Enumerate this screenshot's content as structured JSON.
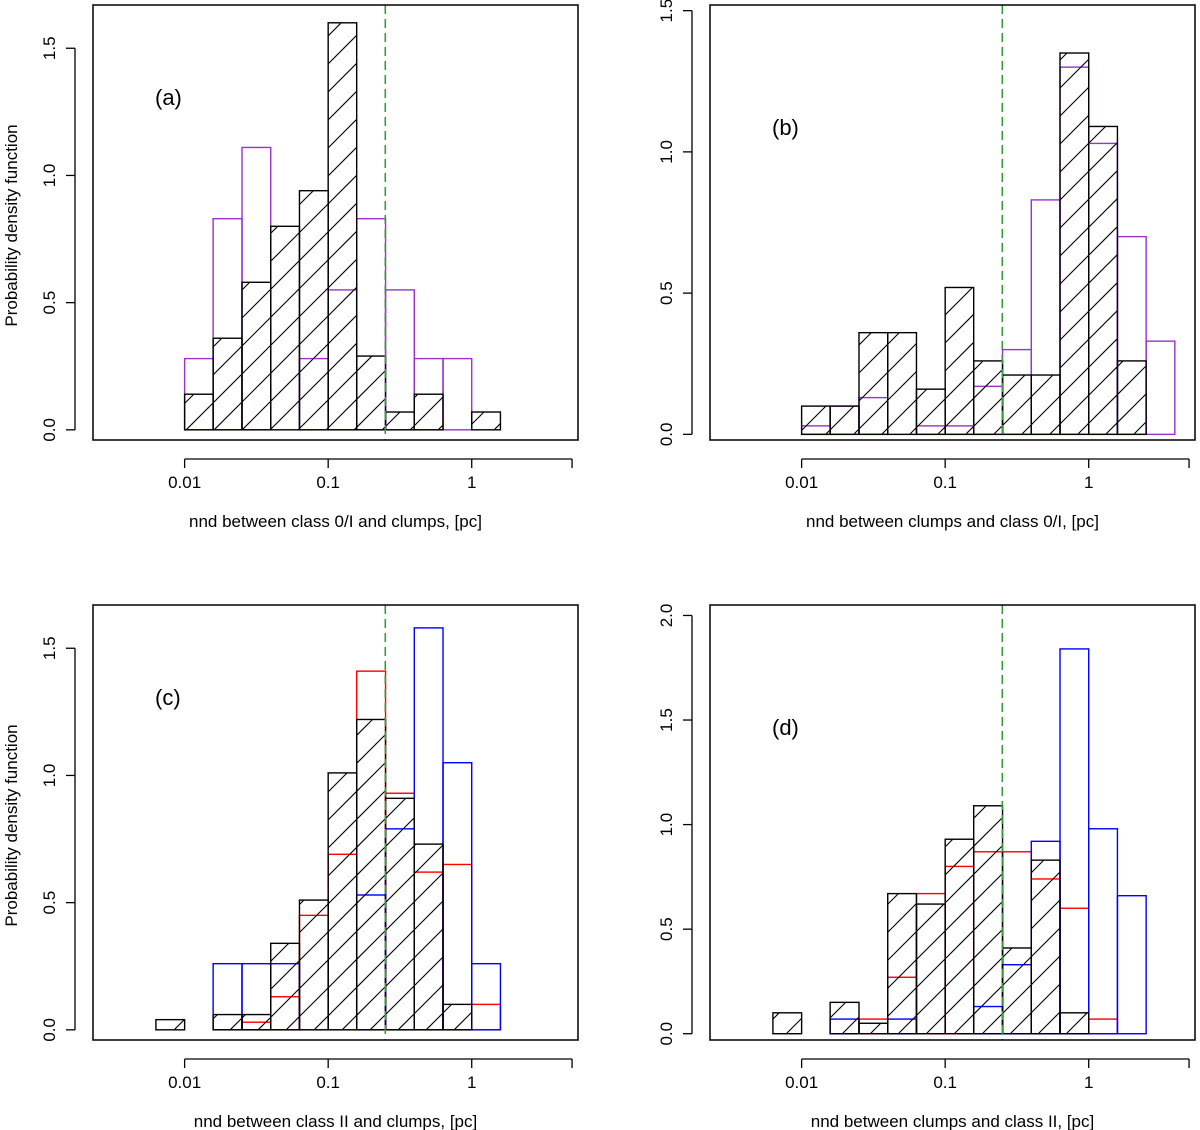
{
  "colors": {
    "black": "#000000",
    "purple": "#9a32cd",
    "red": "#ff0000",
    "blue": "#0000ff",
    "green": "#3a9a3a"
  },
  "chart_data": [
    {
      "type": "bar",
      "panel": "(a)",
      "xlabel": "nnd between class 0/I and clumps, [pc]",
      "ylabel": "Probability density function",
      "xscale": "log10",
      "xlim": [
        0.0023,
        5.5
      ],
      "ylim": [
        -0.04,
        1.67
      ],
      "xticks": [
        0.01,
        0.1,
        1,
        5
      ],
      "xtick_labels": [
        "0.01",
        "0.1",
        "1",
        ""
      ],
      "yticks": [
        0,
        0.5,
        1.0,
        1.5
      ],
      "ytick_labels": [
        "0.0",
        "0.5",
        "1.0",
        "1.5"
      ],
      "vline": 0.25,
      "bin_edges": [
        0.01,
        0.0158,
        0.0251,
        0.0398,
        0.0631,
        0.1,
        0.158,
        0.251,
        0.398,
        0.631,
        1.0,
        1.585
      ],
      "series": [
        {
          "name": "purple",
          "color": "purple",
          "hatched": false,
          "values": [
            0.28,
            0.83,
            1.11,
            0.0,
            0.28,
            0.55,
            0.83,
            0.55,
            0.28,
            0.28,
            0.0
          ]
        },
        {
          "name": "black",
          "color": "black",
          "hatched": true,
          "values": [
            0.14,
            0.36,
            0.58,
            0.8,
            0.94,
            1.6,
            0.29,
            0.07,
            0.14,
            0.0,
            0.07
          ]
        }
      ]
    },
    {
      "type": "bar",
      "panel": "(b)",
      "xlabel": "nnd between clumps and class 0/I, [pc]",
      "ylabel": "",
      "xscale": "log10",
      "xlim": [
        0.0023,
        5.5
      ],
      "ylim": [
        -0.02,
        1.52
      ],
      "xticks": [
        0.01,
        0.1,
        1,
        5
      ],
      "xtick_labels": [
        "0.01",
        "0.1",
        "1",
        ""
      ],
      "yticks": [
        0,
        0.5,
        1.0,
        1.5
      ],
      "ytick_labels": [
        "0.0",
        "0.5",
        "1.0",
        "1.5"
      ],
      "vline": 0.25,
      "bin_edges": [
        0.01,
        0.0158,
        0.0251,
        0.0398,
        0.0631,
        0.1,
        0.158,
        0.251,
        0.398,
        0.631,
        1.0,
        1.585,
        2.512,
        3.981
      ],
      "series": [
        {
          "name": "purple",
          "color": "purple",
          "hatched": false,
          "values": [
            0.03,
            0.1,
            0.13,
            0.0,
            0.03,
            0.03,
            0.17,
            0.3,
            0.83,
            1.3,
            1.03,
            0.7,
            0.33
          ]
        },
        {
          "name": "black",
          "color": "black",
          "hatched": true,
          "values": [
            0.1,
            0.1,
            0.36,
            0.36,
            0.16,
            0.52,
            0.26,
            0.21,
            0.21,
            1.35,
            1.09,
            0.26,
            0.0
          ]
        }
      ]
    },
    {
      "type": "bar",
      "panel": "(c)",
      "xlabel": "nnd between class II and clumps, [pc]",
      "ylabel": "Probability density function",
      "xscale": "log10",
      "xlim": [
        0.0023,
        5.5
      ],
      "ylim": [
        -0.04,
        1.67
      ],
      "xticks": [
        0.01,
        0.1,
        1,
        5
      ],
      "xtick_labels": [
        "0.01",
        "0.1",
        "1",
        ""
      ],
      "yticks": [
        0,
        0.5,
        1.0,
        1.5
      ],
      "ytick_labels": [
        "0.0",
        "0.5",
        "1.0",
        "1.5"
      ],
      "vline": 0.25,
      "bin_edges": [
        0.00631,
        0.01,
        0.0158,
        0.0251,
        0.0398,
        0.0631,
        0.1,
        0.158,
        0.251,
        0.398,
        0.631,
        1.0,
        1.585,
        2.512,
        3.981
      ],
      "series": [
        {
          "name": "red",
          "color": "red",
          "hatched": false,
          "values": [
            0.0,
            0.0,
            0.0,
            0.03,
            0.13,
            0.45,
            0.69,
            1.41,
            0.93,
            0.62,
            0.65,
            0.1,
            0.0,
            0.0
          ]
        },
        {
          "name": "blue",
          "color": "blue",
          "hatched": false,
          "values": [
            0.0,
            0.0,
            0.26,
            0.26,
            0.26,
            0.0,
            0.0,
            0.53,
            0.79,
            1.58,
            1.05,
            0.26,
            0.0,
            0.0
          ]
        },
        {
          "name": "black",
          "color": "black",
          "hatched": true,
          "values": [
            0.04,
            0.0,
            0.06,
            0.06,
            0.34,
            0.51,
            1.01,
            1.22,
            0.91,
            0.73,
            0.1,
            0.0,
            0.0,
            0.0
          ]
        }
      ]
    },
    {
      "type": "bar",
      "panel": "(d)",
      "xlabel": "nnd between clumps and class II, [pc]",
      "ylabel": "",
      "xscale": "log10",
      "xlim": [
        0.0023,
        5.5
      ],
      "ylim": [
        -0.03,
        2.05
      ],
      "xticks": [
        0.01,
        0.1,
        1,
        5
      ],
      "xtick_labels": [
        "0.01",
        "0.1",
        "1",
        ""
      ],
      "yticks": [
        0,
        0.5,
        1.0,
        1.5,
        2.0
      ],
      "ytick_labels": [
        "0.0",
        "0.5",
        "1.0",
        "1.5",
        "2.0"
      ],
      "vline": 0.25,
      "bin_edges": [
        0.00631,
        0.01,
        0.0158,
        0.0251,
        0.0398,
        0.0631,
        0.1,
        0.158,
        0.251,
        0.398,
        0.631,
        1.0,
        1.585,
        2.512
      ],
      "series": [
        {
          "name": "red",
          "color": "red",
          "hatched": false,
          "values": [
            0.0,
            0.0,
            0.0,
            0.07,
            0.27,
            0.67,
            0.8,
            0.87,
            0.87,
            0.74,
            0.6,
            0.07,
            0.0
          ]
        },
        {
          "name": "blue",
          "color": "blue",
          "hatched": false,
          "values": [
            0.0,
            0.0,
            0.07,
            0.0,
            0.07,
            0.0,
            0.0,
            0.13,
            0.33,
            0.92,
            1.84,
            0.98,
            0.66
          ]
        },
        {
          "name": "black",
          "color": "black",
          "hatched": true,
          "values": [
            0.1,
            0.0,
            0.15,
            0.05,
            0.67,
            0.62,
            0.93,
            1.09,
            0.41,
            0.83,
            0.1,
            0.0,
            0.0
          ]
        }
      ]
    }
  ]
}
